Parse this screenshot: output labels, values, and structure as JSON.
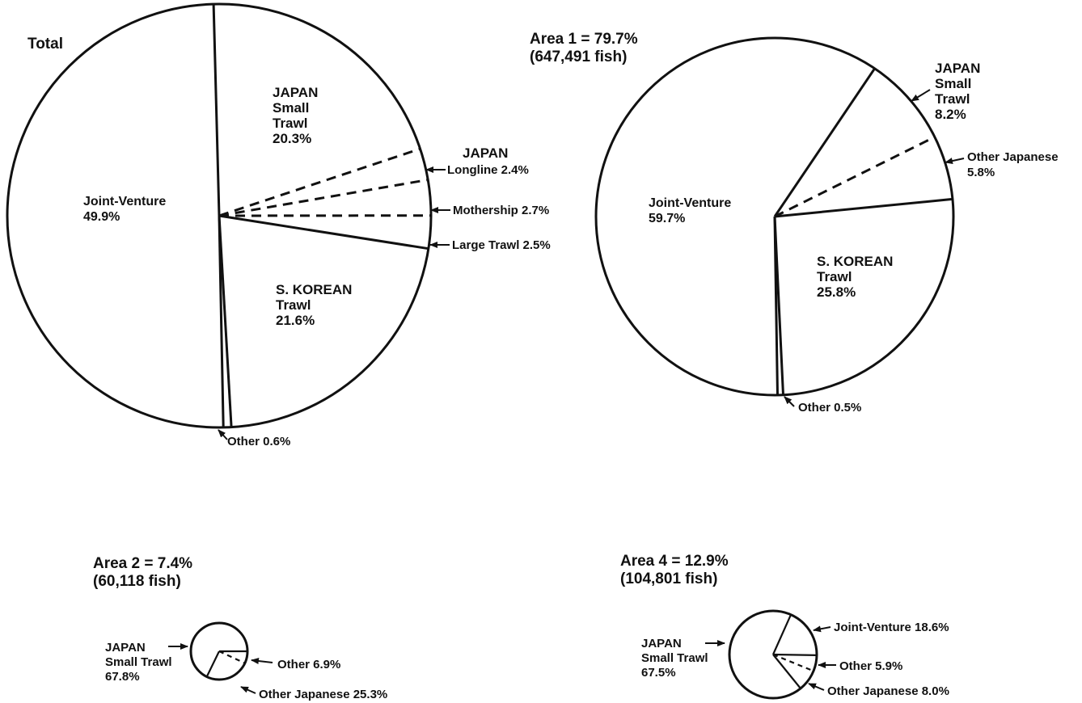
{
  "chart_data": [
    {
      "type": "pie",
      "title": "Total",
      "slices": [
        {
          "group": "JAPAN",
          "name": "Small Trawl",
          "value": 20.3,
          "label": "20.3%"
        },
        {
          "group": "JAPAN",
          "name": "Longline",
          "value": 2.4,
          "label": "Longline 2.4%"
        },
        {
          "group": "JAPAN",
          "name": "Mothership",
          "value": 2.7,
          "label": "Mothership 2.7%"
        },
        {
          "group": "JAPAN",
          "name": "Large Trawl",
          "value": 2.5,
          "label": "Large Trawl 2.5%"
        },
        {
          "group": "S. KOREAN",
          "name": "Trawl",
          "value": 21.6,
          "label": "21.6%"
        },
        {
          "group": "",
          "name": "Other",
          "value": 0.6,
          "label": "Other 0.6%"
        },
        {
          "group": "",
          "name": "Joint-Venture",
          "value": 49.9,
          "label": "49.9%"
        }
      ]
    },
    {
      "type": "pie",
      "title": "Area 1 = 79.7%",
      "subtitle": "(647,491 fish)",
      "slices": [
        {
          "group": "JAPAN",
          "name": "Small Trawl",
          "value": 8.2,
          "label": "8.2%"
        },
        {
          "group": "",
          "name": "Other Japanese",
          "value": 5.8,
          "label": "5.8%"
        },
        {
          "group": "S. KOREAN",
          "name": "Trawl",
          "value": 25.8,
          "label": "25.8%"
        },
        {
          "group": "",
          "name": "Other",
          "value": 0.5,
          "label": "Other 0.5%"
        },
        {
          "group": "",
          "name": "Joint-Venture",
          "value": 59.7,
          "label": "59.7%"
        }
      ]
    },
    {
      "type": "pie",
      "title": "Area 2 = 7.4%",
      "subtitle": "(60,118 fish)",
      "slices": [
        {
          "group": "",
          "name": "Other",
          "value": 6.9,
          "label": "Other 6.9%"
        },
        {
          "group": "",
          "name": "Other Japanese",
          "value": 25.3,
          "label": "Other Japanese 25.3%"
        },
        {
          "group": "JAPAN",
          "name": "Small Trawl",
          "value": 67.8,
          "label": "67.8%"
        }
      ]
    },
    {
      "type": "pie",
      "title": "Area 4 = 12.9%",
      "subtitle": "(104,801 fish)",
      "slices": [
        {
          "group": "",
          "name": "Joint-Venture",
          "value": 18.6,
          "label": "Joint-Venture 18.6%"
        },
        {
          "group": "",
          "name": "Other",
          "value": 5.9,
          "label": "Other 5.9%"
        },
        {
          "group": "",
          "name": "Other Japanese",
          "value": 8.0,
          "label": "Other Japanese 8.0%"
        },
        {
          "group": "JAPAN",
          "name": "Small Trawl",
          "value": 67.5,
          "label": "67.5%"
        }
      ]
    }
  ],
  "text": {
    "total": {
      "title": "Total",
      "jp_small_1": "JAPAN",
      "jp_small_2": "Small",
      "jp_small_3": "Trawl",
      "jp_small_4": "20.3%",
      "jp_group": "JAPAN",
      "longline": "Longline 2.4%",
      "mothership": "Mothership 2.7%",
      "large_trawl": "Large Trawl 2.5%",
      "korean_1": "S. KOREAN",
      "korean_2": "Trawl",
      "korean_3": "21.6%",
      "jv_1": "Joint-Venture",
      "jv_2": "49.9%",
      "other": "Other 0.6%"
    },
    "area1": {
      "title": "Area 1 = 79.7%",
      "subtitle": "(647,491 fish)",
      "jp_1": "JAPAN",
      "jp_2": "Small",
      "jp_3": "Trawl",
      "jp_4": "8.2%",
      "oj_1": "Other Japanese",
      "oj_2": "5.8%",
      "jv_1": "Joint-Venture",
      "jv_2": "59.7%",
      "korean_1": "S. KOREAN",
      "korean_2": "Trawl",
      "korean_3": "25.8%",
      "other": "Other 0.5%"
    },
    "area2": {
      "title": "Area 2 = 7.4%",
      "subtitle": "(60,118 fish)",
      "jp_1": "JAPAN",
      "jp_2": "Small Trawl",
      "jp_3": "67.8%",
      "other": "Other 6.9%",
      "oj": "Other Japanese 25.3%"
    },
    "area4": {
      "title": "Area 4 = 12.9%",
      "subtitle": "(104,801 fish)",
      "jp_1": "JAPAN",
      "jp_2": "Small Trawl",
      "jp_3": "67.5%",
      "jv": "Joint-Venture 18.6%",
      "other": "Other 5.9%",
      "oj": "Other Japanese 8.0%"
    }
  }
}
